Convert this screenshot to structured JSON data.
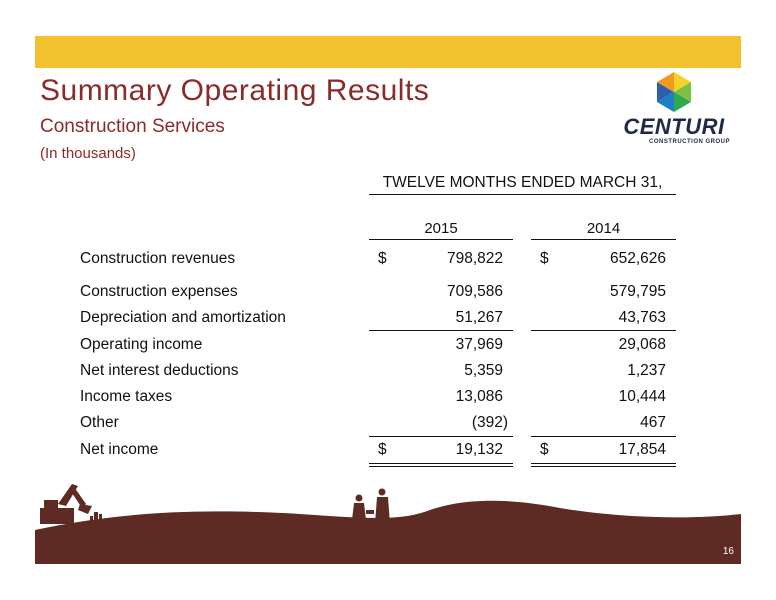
{
  "header": {
    "title": "Summary Operating Results",
    "subtitle": "Construction Services",
    "note": "(In thousands)"
  },
  "logo": {
    "name": "CENTURI",
    "tagline": "CONSTRUCTION GROUP"
  },
  "table": {
    "period": "TWELVE MONTHS ENDED MARCH 31,",
    "years": [
      "2015",
      "2014"
    ],
    "currency": "$",
    "rows": [
      {
        "label": "Construction revenues",
        "v2015": "798,822",
        "v2014": "652,626"
      },
      {
        "label": "Construction expenses",
        "v2015": "709,586",
        "v2014": "579,795"
      },
      {
        "label": "Depreciation and amortization",
        "v2015": "51,267",
        "v2014": "43,763"
      },
      {
        "label": "Operating income",
        "v2015": "37,969",
        "v2014": "29,068"
      },
      {
        "label": "Net interest deductions",
        "v2015": "5,359",
        "v2014": "1,237"
      },
      {
        "label": "Income taxes",
        "v2015": "13,086",
        "v2014": "10,444"
      },
      {
        "label": "Other",
        "v2015": "(392)",
        "v2014": "467"
      },
      {
        "label": "Net income",
        "v2015": "19,132",
        "v2014": "17,854"
      }
    ]
  },
  "footer": {
    "page": "16"
  },
  "colors": {
    "accent_bar": "#f2c12e",
    "title": "#8b2a2a",
    "ground": "#5e2a24",
    "logo": "#1f2a44"
  }
}
